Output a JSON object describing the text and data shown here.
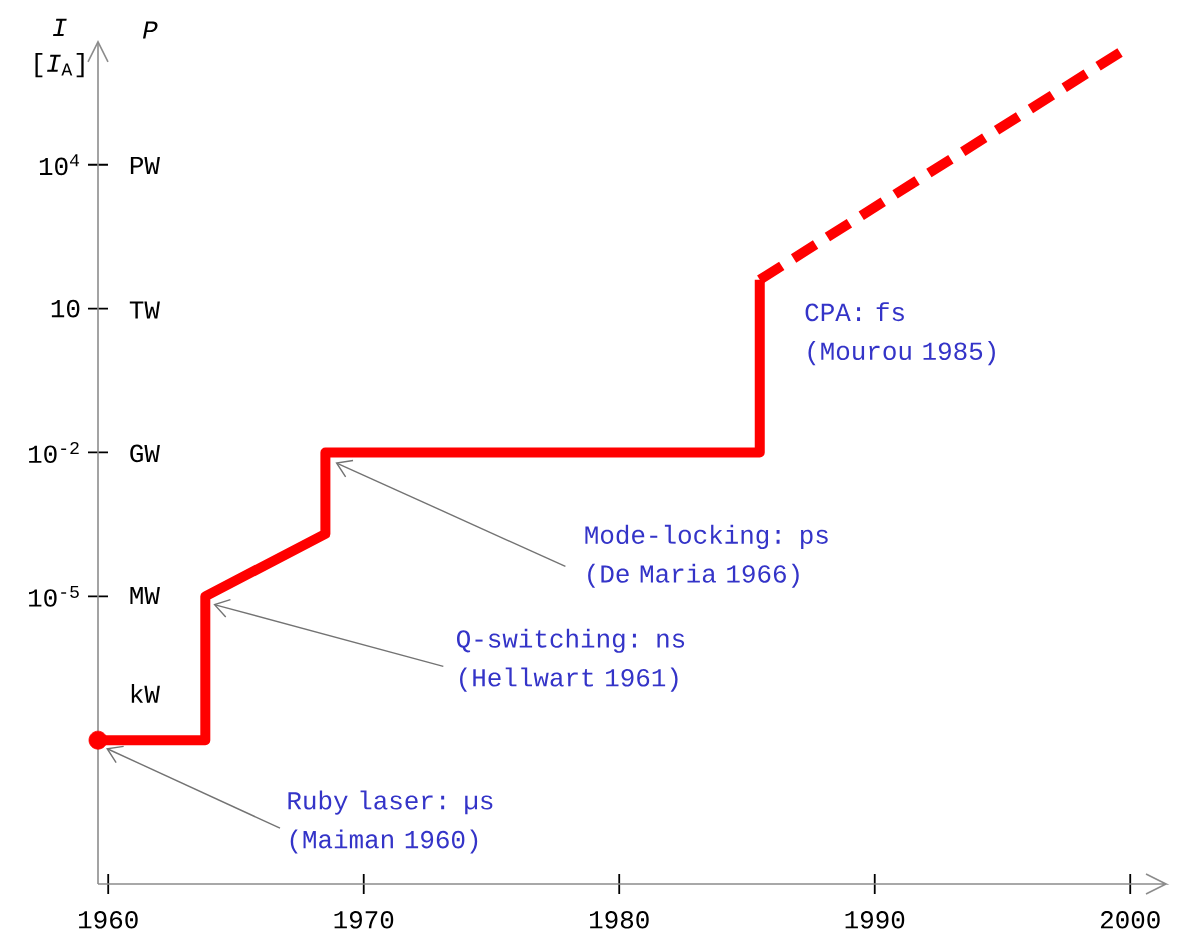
{
  "chart_data": {
    "type": "line",
    "ylabel": "*I* [*I*$_{A}$]",
    "y2label": "P",
    "log": true,
    "xlim": [
      1959.6,
      2001.4
    ],
    "xticks": [
      1960,
      1970,
      1980,
      1990,
      2000
    ],
    "ylim": [
      1e-11,
      4000000
    ],
    "yticks": [
      {
        "value": 10000,
        "label": "10$^{4}$"
      },
      10,
      {
        "value": 0.01,
        "label": "10$^{-2}$"
      },
      {
        "value": 1e-05,
        "label": "10$^{-5}$"
      }
    ],
    "series": [
      {
        "color": "#ff0000",
        "line_style": "solid",
        "x": [
          1959.6,
          1963.8,
          1963.8,
          1968.5,
          1968.5,
          1985.5,
          1985.5
        ],
        "values": [
          1e-08,
          1e-08,
          1e-05,
          0.0002,
          0.01,
          0.01,
          40
        ]
      },
      {
        "color": "#ff0000",
        "line_style": "dashed",
        "x": [
          1985.5,
          2000
        ],
        "values": [
          40,
          3000000
        ]
      },
      {
        "type": "scatter",
        "color": "#ff0000",
        "marker": "circle",
        "x": [
          1959.6
        ],
        "values": [
          1e-08
        ]
      }
    ],
    "annotations": [
      "PW",
      "TW",
      "GW",
      "MW",
      "kW",
      {
        "text": "Ruby laser: µs (Maiman 1960)",
        "x": 1959.6,
        "y": 1e-08
      },
      {
        "text": "Q-switching: ns (Hellwart 1961)",
        "x": 1963.8,
        "y": 1e-05
      },
      {
        "text": "Mode-locking: ps (De Maria 1966)",
        "x": 1968.5,
        "y": 0.01
      },
      {
        "text": "CPA: fs (Mourou 1985)",
        "x": 1985.5,
        "y": 40
      }
    ]
  }
}
